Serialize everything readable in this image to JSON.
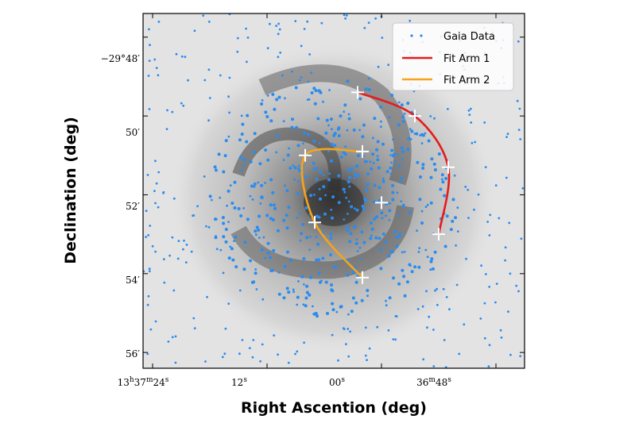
{
  "chart_data": {
    "type": "scatter",
    "title": "",
    "xlabel": "Right Ascention (deg)",
    "ylabel": "Declination (deg)",
    "x_ticks": [
      {
        "main": "13",
        "h": "h",
        "m1": "37",
        "m": "m",
        "s1": "24",
        "s": "s",
        "full": "13h37m24s"
      },
      {
        "main": "12",
        "s": "s",
        "full": "12s"
      },
      {
        "main": "00",
        "s": "s",
        "full": "00s"
      },
      {
        "main": "36",
        "m": "m",
        "s1": "48",
        "s": "s",
        "full": "36m48s"
      }
    ],
    "y_ticks": [
      {
        "text": "−29°48′",
        "value_arcmin": 48
      },
      {
        "text": "50′",
        "value_arcmin": 50
      },
      {
        "text": "52′",
        "value_arcmin": 52
      },
      {
        "text": "54′",
        "value_arcmin": 54
      },
      {
        "text": "56′",
        "value_arcmin": 56
      }
    ],
    "xlim_seconds": [
      25,
      -15
    ],
    "ylim_arcmin": [
      47.4,
      56.4
    ],
    "legend_placement": "top-right",
    "series": [
      {
        "name": "Gaia Data",
        "color": "#2a8cf0",
        "marker": "dot"
      },
      {
        "name": "Fit Arm 1",
        "color": "#e61a1a",
        "marker": "line",
        "points": [
          [
            2.5,
            49.4
          ],
          [
            -3.5,
            50.0
          ],
          [
            -7.0,
            51.3
          ],
          [
            -6.0,
            53.0
          ]
        ]
      },
      {
        "name": "Fit Arm 2",
        "color": "#f5a41b",
        "marker": "line",
        "points": [
          [
            2.0,
            50.9
          ],
          [
            8.0,
            51.0
          ],
          [
            7.0,
            52.7
          ],
          [
            2.0,
            54.1
          ]
        ]
      }
    ],
    "markers": [
      {
        "x": 2.5,
        "y": 49.4
      },
      {
        "x": -3.5,
        "y": 50.0
      },
      {
        "x": -7.0,
        "y": 51.3
      },
      {
        "x": -6.0,
        "y": 53.0
      },
      {
        "x": 2.0,
        "y": 50.9
      },
      {
        "x": 8.0,
        "y": 51.0
      },
      {
        "x": 0.0,
        "y": 52.2
      },
      {
        "x": 7.0,
        "y": 52.7
      },
      {
        "x": 2.0,
        "y": 54.1
      }
    ],
    "background": "grayscale galaxy image"
  }
}
